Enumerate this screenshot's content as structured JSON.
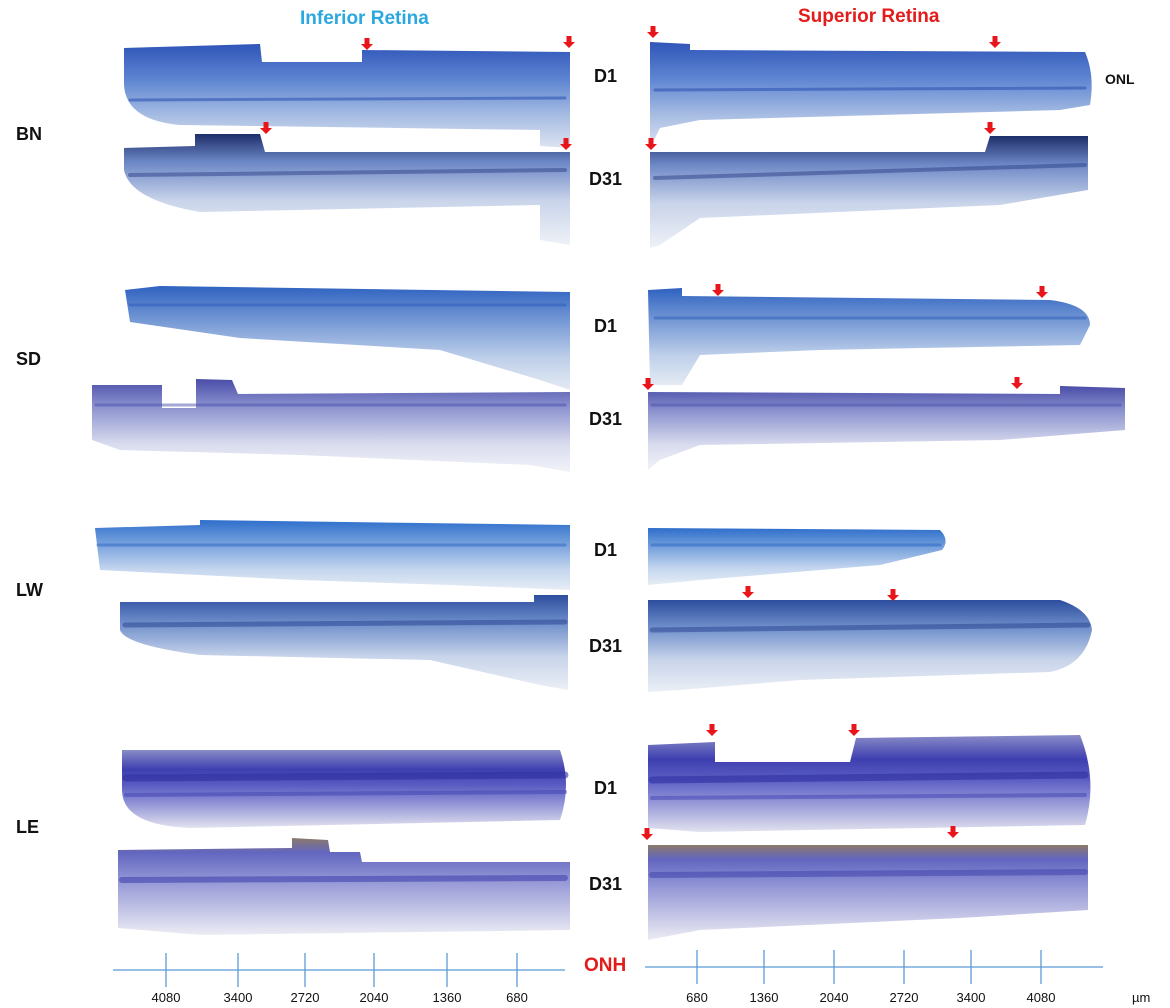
{
  "headers": {
    "inferior": {
      "label": "Inferior Retina",
      "color": "#2BA8E0"
    },
    "superior": {
      "label": "Superior Retina",
      "color": "#E21B1B"
    }
  },
  "rows": [
    {
      "label": "BN",
      "days": [
        "D1",
        "D31"
      ]
    },
    {
      "label": "SD",
      "days": [
        "D1",
        "D31"
      ]
    },
    {
      "label": "LW",
      "days": [
        "D1",
        "D31"
      ]
    },
    {
      "label": "LE",
      "days": [
        "D1",
        "D31"
      ]
    }
  ],
  "onl_label": "ONL",
  "axis": {
    "center_label": "ONH",
    "center_color": "#E21B1B",
    "line_color": "#5B9BD5",
    "inferior_ticks": [
      "4080",
      "3400",
      "2720",
      "2040",
      "1360",
      "680"
    ],
    "superior_ticks": [
      "680",
      "1360",
      "2040",
      "2720",
      "3400",
      "4080"
    ],
    "unit": "µm"
  },
  "arrow_color": "#E8151B",
  "stain_colors": {
    "BN": {
      "top": "#3A63C8",
      "mid": "#7B9BDB",
      "low": "#D8E0EE"
    },
    "SD": {
      "top": "#3D73C9",
      "mid": "#9CB6E0",
      "low": "#E1E7F0"
    },
    "LW": {
      "top": "#3C7BD0",
      "mid": "#8EB3E2",
      "low": "#E0E8F2"
    },
    "LE": {
      "top": "#4B4FB8",
      "mid": "#6E6FCC",
      "low": "#E2E2EF"
    }
  }
}
